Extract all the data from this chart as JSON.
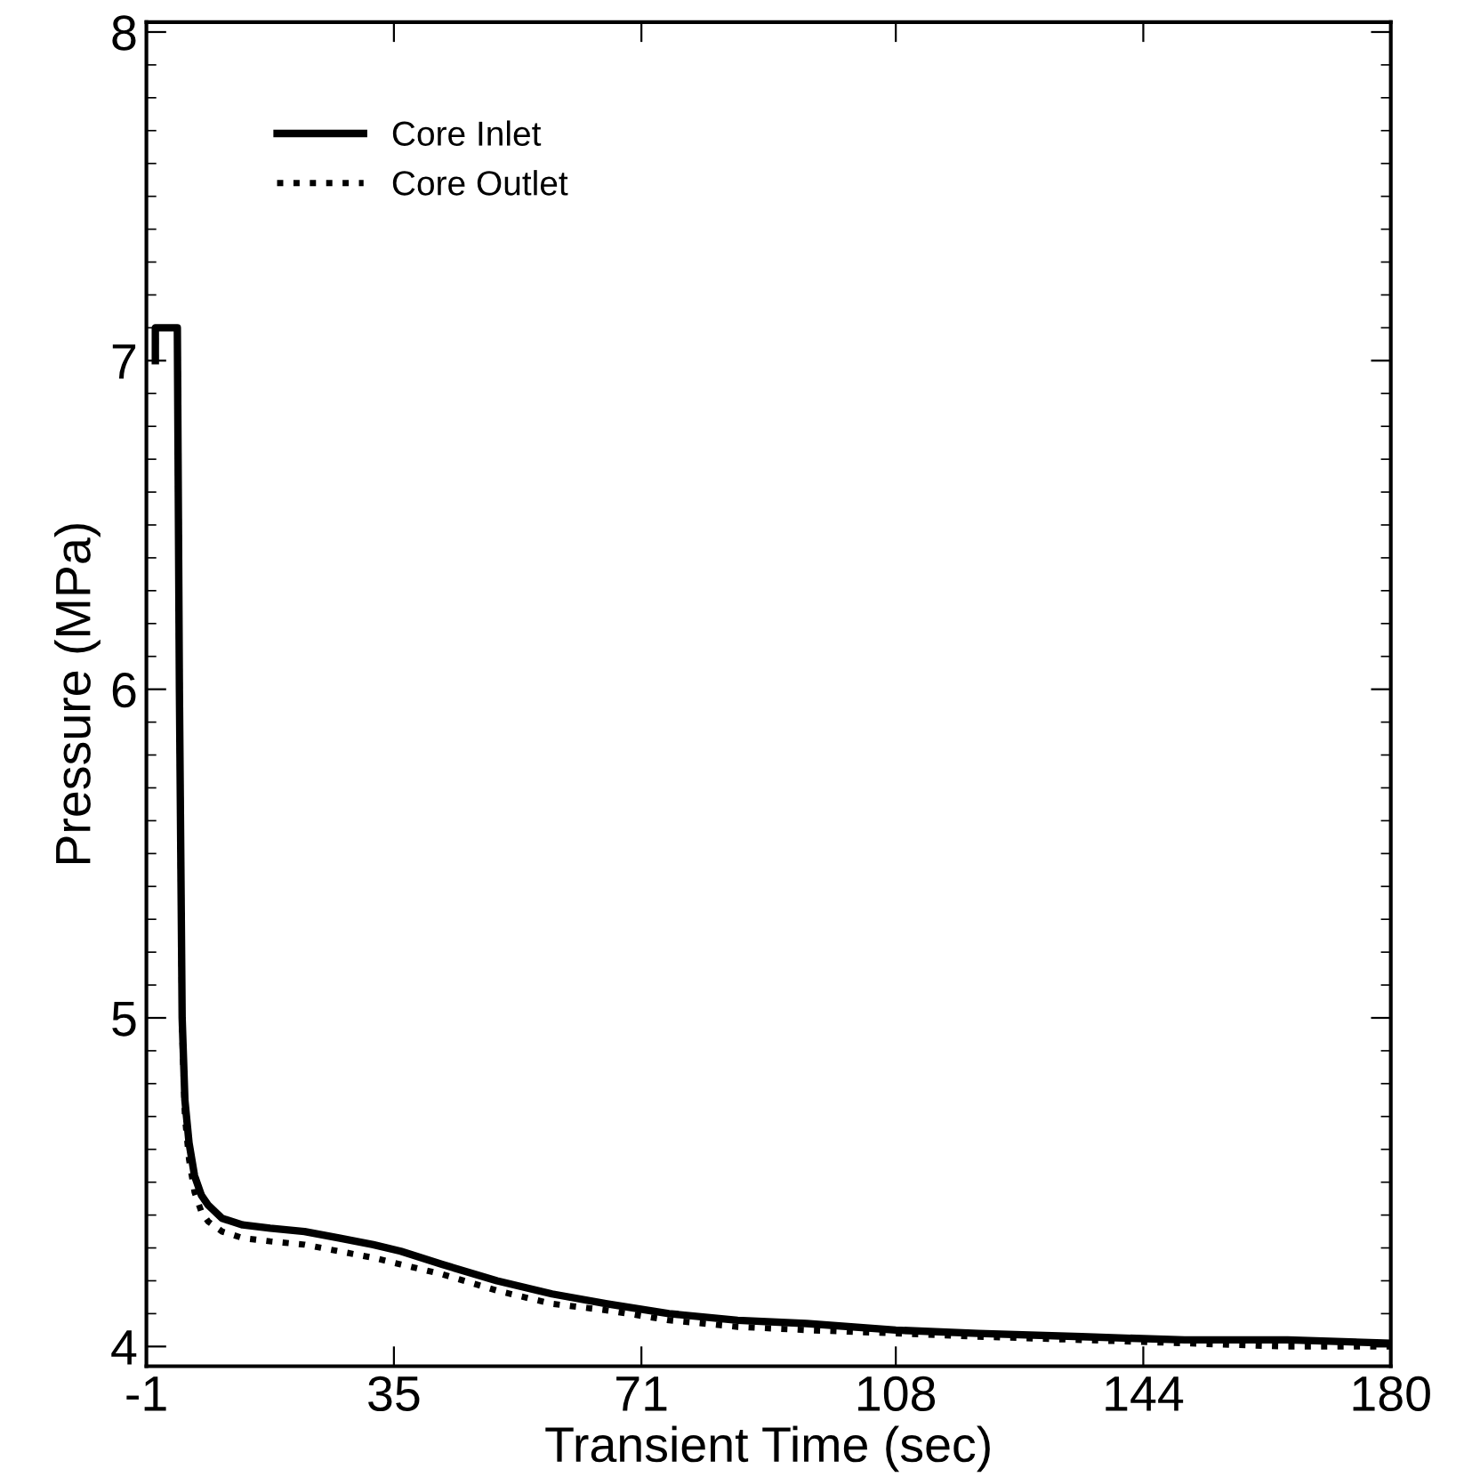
{
  "chart_data": {
    "type": "line",
    "xlabel": "Transient Time (sec)",
    "ylabel": "Pressure (MPa)",
    "xlim": [
      -1,
      180
    ],
    "xticks": [
      -1,
      35,
      71,
      108,
      144,
      180
    ],
    "ylim": [
      3.94,
      8.03
    ],
    "yticks": [
      4,
      5,
      6,
      7,
      8
    ],
    "legend": "top left",
    "grid": false,
    "series": [
      {
        "name": "Core Inlet",
        "color": "#000000",
        "line_style": "solid",
        "x": [
          0.3,
          0.3,
          3.5,
          3.8,
          4.2,
          4.6,
          5.2,
          6,
          7,
          8,
          10,
          13,
          17,
          22,
          27,
          32,
          36,
          42,
          50,
          58,
          66,
          75,
          85,
          95,
          108,
          120,
          135,
          150,
          165,
          180
        ],
        "values": [
          7.0,
          7.1,
          7.1,
          6.0,
          5.0,
          4.75,
          4.62,
          4.52,
          4.46,
          4.43,
          4.39,
          4.37,
          4.36,
          4.35,
          4.33,
          4.31,
          4.29,
          4.25,
          4.2,
          4.16,
          4.13,
          4.1,
          4.08,
          4.07,
          4.05,
          4.04,
          4.03,
          4.02,
          4.02,
          4.01
        ]
      },
      {
        "name": "Core Outlet",
        "color": "#000000",
        "line_style": "dotted",
        "x": [
          0.3,
          0.3,
          3.5,
          3.8,
          4.2,
          4.6,
          5.2,
          6,
          7,
          8,
          10,
          13,
          17,
          22,
          27,
          32,
          36,
          42,
          50,
          58,
          66,
          75,
          85,
          95,
          108,
          120,
          135,
          150,
          165,
          180
        ],
        "values": [
          7.0,
          7.1,
          7.1,
          6.0,
          4.96,
          4.7,
          4.57,
          4.47,
          4.41,
          4.38,
          4.35,
          4.33,
          4.32,
          4.31,
          4.29,
          4.27,
          4.25,
          4.22,
          4.17,
          4.13,
          4.11,
          4.08,
          4.06,
          4.05,
          4.04,
          4.03,
          4.02,
          4.01,
          4.0,
          4.0
        ]
      }
    ]
  }
}
